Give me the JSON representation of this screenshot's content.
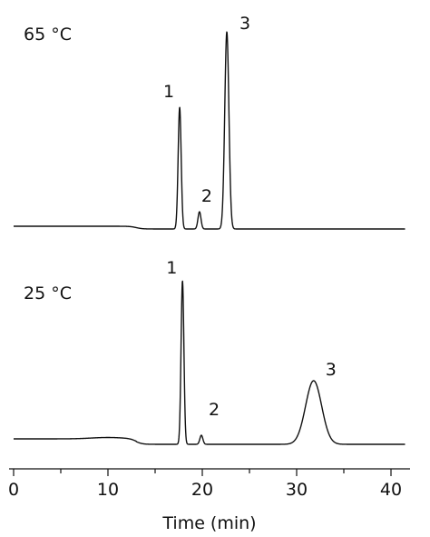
{
  "chart_data": {
    "type": "line",
    "xlabel": "Time (min)",
    "xlim": [
      0,
      42
    ],
    "x_ticks": [
      0,
      10,
      20,
      30,
      40
    ],
    "y_axis_shown": false,
    "grid": false,
    "panels": [
      {
        "label": "65 °C",
        "baseline": 0,
        "peaks": [
          {
            "label": "1",
            "time": 17.6,
            "height": 134,
            "width": 0.16
          },
          {
            "label": "2",
            "time": 19.7,
            "height": 19,
            "width": 0.16
          },
          {
            "label": "3",
            "time": 22.6,
            "height": 217,
            "width": 0.22
          }
        ],
        "baseline_disturbance": {
          "time": 13.0,
          "depth": -3
        }
      },
      {
        "label": "25 °C",
        "baseline": 0,
        "peaks": [
          {
            "label": "1",
            "time": 17.9,
            "height": 180,
            "width": 0.15
          },
          {
            "label": "2",
            "time": 19.9,
            "height": 10,
            "width": 0.16
          },
          {
            "label": "3",
            "time": 31.8,
            "height": 70,
            "width": 0.85
          }
        ],
        "baseline_disturbance": {
          "time": 13.0,
          "depth": -6
        }
      }
    ]
  }
}
